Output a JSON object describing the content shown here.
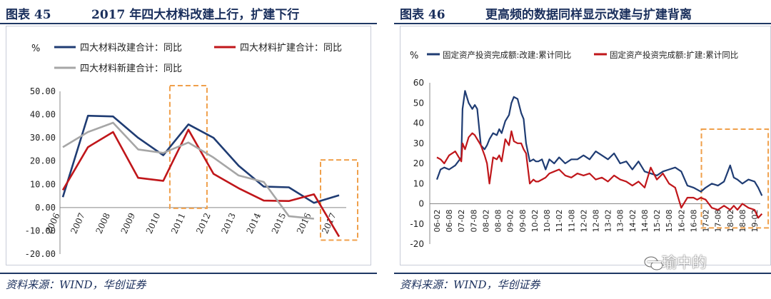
{
  "left": {
    "title_num": "图表 45",
    "title_text": "2017 年四大材料改建上行，扩建下行",
    "source": "资料来源：WIND，华创证券",
    "chart_data": {
      "type": "line",
      "ylabel": "%",
      "ylim": [
        -20,
        50
      ],
      "yticks": [
        "50.00",
        "40.00",
        "30.00",
        "20.00",
        "10.00",
        "0.00",
        "-10.00",
        "-20.00"
      ],
      "categories": [
        "2006",
        "2007",
        "2008",
        "2009",
        "2010",
        "2011",
        "2012",
        "2013",
        "2014",
        "2015",
        "2016",
        "2017"
      ],
      "series": [
        {
          "name": "四大材料改建合计：同比",
          "color": "#1f3c73",
          "values": [
            4.5,
            39.5,
            39.2,
            30.0,
            22.5,
            35.8,
            30.0,
            18.0,
            9.0,
            8.7,
            2.0,
            5.3
          ]
        },
        {
          "name": "四大材料扩建合计：同比",
          "color": "#c0161a",
          "values": [
            7.5,
            26.0,
            32.5,
            12.8,
            11.5,
            33.5,
            14.5,
            8.3,
            3.0,
            2.8,
            5.7,
            -12.5
          ]
        },
        {
          "name": "四大材料新建合计：同比",
          "color": "#a6a6a6",
          "values": [
            26.0,
            32.5,
            36.5,
            25.0,
            23.5,
            28.0,
            21.5,
            13.8,
            11.0,
            -3.7,
            -4.8,
            null
          ]
        }
      ],
      "highlights": [
        {
          "from": "2011",
          "to": "2011"
        },
        {
          "from": "2017",
          "to": "2017"
        }
      ]
    }
  },
  "right": {
    "title_num": "图表 46",
    "title_text": "更高频的数据同样显示改建与扩建背离",
    "source": "资料来源：WIND，华创证券",
    "chart_data": {
      "type": "line",
      "ylabel": "%",
      "ylim": [
        -20,
        60
      ],
      "yticks": [
        "60",
        "50",
        "40",
        "30",
        "20",
        "10",
        "0",
        "-10",
        "-20"
      ],
      "tick_labels": [
        "06-02",
        "06-08",
        "07-02",
        "07-08",
        "08-02",
        "08-08",
        "09-02",
        "09-08",
        "10-02",
        "10-08",
        "11-02",
        "11-08",
        "12-02",
        "12-08",
        "13-02",
        "13-08",
        "14-02",
        "14-08",
        "15-02",
        "15-08",
        "16-02",
        "16-08",
        "17-02",
        "17-08",
        "18-02",
        "18-08",
        "19-02"
      ],
      "series": [
        {
          "name": "固定资产投资完成额:改建:累计同比",
          "color": "#1f3c73",
          "x": [
            0,
            0.3,
            0.6,
            1,
            1.5,
            2,
            2.1,
            2.3,
            2.6,
            2.9,
            3.1,
            3.3,
            3.6,
            3.9,
            4.1,
            4.3,
            4.6,
            4.9,
            5.1,
            5.3,
            5.6,
            5.9,
            6.1,
            6.3,
            6.6,
            6.9,
            7.1,
            7.3,
            7.6,
            7.9,
            8.1,
            8.3,
            8.6,
            8.9,
            9.2,
            9.6,
            10,
            10.5,
            11,
            11.5,
            12,
            12.5,
            13,
            13.5,
            14,
            14.5,
            15,
            15.5,
            16,
            16.5,
            17,
            17.5,
            18,
            18.5,
            19,
            19.5,
            20,
            20.5,
            21,
            21.3,
            21.6,
            22,
            22.5,
            23,
            23.5,
            24,
            24.3,
            24.6,
            25,
            25.5,
            26,
            26.3,
            26.6
          ],
          "y": [
            12,
            17,
            18,
            17,
            19,
            23,
            47,
            56,
            50,
            47,
            49,
            47,
            29,
            27,
            29,
            32,
            35,
            34,
            37,
            35,
            41,
            44,
            50,
            53,
            52,
            45,
            42,
            30,
            21,
            22,
            21,
            21,
            22,
            17,
            22,
            20,
            23,
            20,
            22,
            22,
            24,
            22,
            26,
            24,
            22,
            25,
            20,
            21,
            17,
            21,
            16,
            15,
            14,
            16,
            17,
            18,
            16,
            9,
            8,
            7,
            6,
            8,
            10,
            9,
            11,
            19,
            13,
            12,
            10,
            12,
            11,
            8,
            4
          ]
        },
        {
          "name": "固定资产投资完成额:扩建:累计同比",
          "color": "#c0161a",
          "x": [
            0,
            0.3,
            0.6,
            1,
            1.5,
            2,
            2.1,
            2.3,
            2.6,
            2.9,
            3.1,
            3.3,
            3.6,
            3.9,
            4.1,
            4.3,
            4.6,
            4.9,
            5.1,
            5.3,
            5.6,
            5.9,
            6.1,
            6.3,
            6.6,
            6.9,
            7.1,
            7.3,
            7.6,
            7.9,
            8.1,
            8.3,
            8.6,
            8.9,
            9.2,
            9.6,
            10,
            10.5,
            11,
            11.5,
            12,
            12.5,
            13,
            13.5,
            14,
            14.5,
            15,
            15.5,
            16,
            16.5,
            17,
            17.5,
            18,
            18.5,
            19,
            19.5,
            20,
            20.5,
            21,
            21.3,
            21.6,
            22,
            22.5,
            23,
            23.5,
            24,
            24.3,
            24.6,
            25,
            25.5,
            26,
            26.3,
            26.6
          ],
          "y": [
            23,
            22,
            20,
            24,
            26,
            21,
            30,
            27,
            33,
            35,
            34,
            32,
            29,
            24,
            20,
            10,
            23,
            22,
            24,
            21,
            32,
            29,
            36,
            31,
            30,
            30,
            27,
            25,
            10,
            12,
            11,
            11,
            12,
            13,
            15,
            16,
            17,
            14,
            13,
            15,
            14,
            15,
            12,
            13,
            11,
            14,
            12,
            11,
            9,
            11,
            8,
            18,
            12,
            15,
            10,
            8,
            -2,
            3,
            3,
            2,
            3,
            2,
            -2,
            -3,
            -1,
            -3,
            -1,
            -3,
            0,
            -2,
            -3,
            -7,
            -5
          ]
        }
      ],
      "highlight": {
        "x_from": 22,
        "x_to": 27,
        "y_from": -12,
        "y_to": 37
      }
    }
  },
  "watermark": "一瑜中的"
}
